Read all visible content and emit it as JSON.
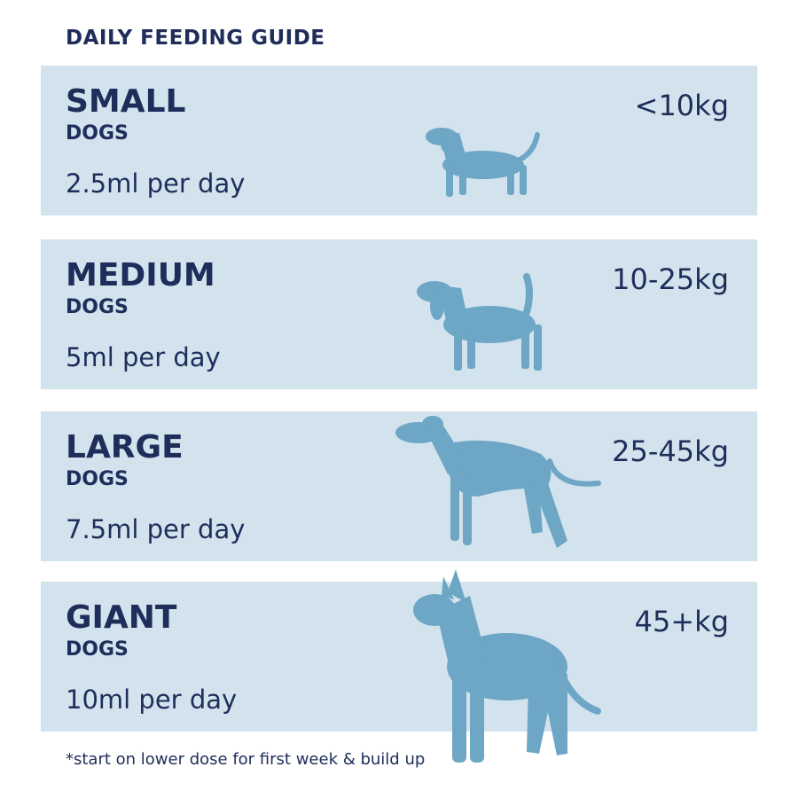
{
  "header": {
    "title": "DAILY FEEDING GUIDE"
  },
  "rows": [
    {
      "size": "SMALL",
      "dogs": "DOGS",
      "dose": "2.5ml per day",
      "weight": "<10kg"
    },
    {
      "size": "MEDIUM",
      "dogs": "DOGS",
      "dose": "5ml per day",
      "weight": "10-25kg"
    },
    {
      "size": "LARGE",
      "dogs": "DOGS",
      "dose": "7.5ml per day",
      "weight": "25-45kg"
    },
    {
      "size": "GIANT",
      "dogs": "DOGS",
      "dose": "10ml per day",
      "weight": "45+kg"
    }
  ],
  "footnote": "*start on lower dose for first week & build up"
}
